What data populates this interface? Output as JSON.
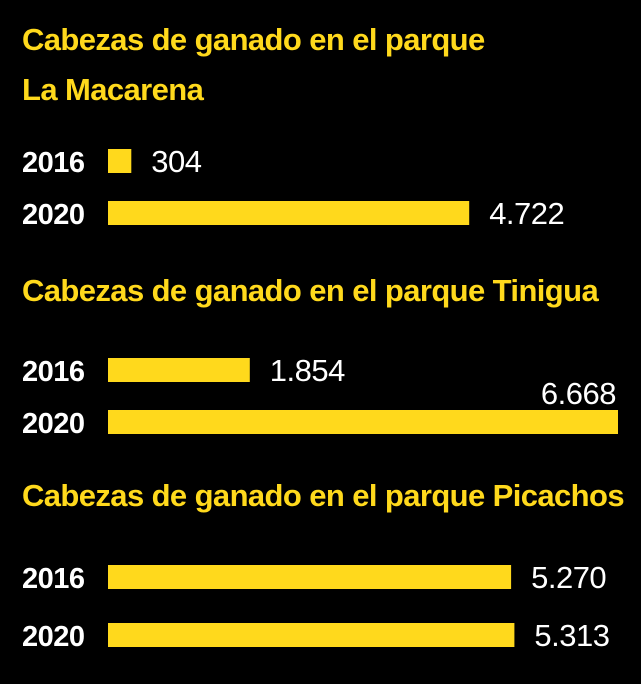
{
  "colors": {
    "background": "#000000",
    "accent": "#ffd91c",
    "text": "#ffffff"
  },
  "chart_data": [
    {
      "type": "bar",
      "orientation": "horizontal",
      "title_lines": [
        "Cabezas de ganado en el parque",
        "La Macarena"
      ],
      "categories": [
        "2016",
        "2020"
      ],
      "values": [
        304,
        4722
      ],
      "value_labels": [
        "304",
        "4.722"
      ]
    },
    {
      "type": "bar",
      "orientation": "horizontal",
      "title_lines": [
        "Cabezas de ganado en el parque Tinigua"
      ],
      "categories": [
        "2016",
        "2020"
      ],
      "values": [
        1854,
        6668
      ],
      "value_labels": [
        "1.854",
        "6.668"
      ]
    },
    {
      "type": "bar",
      "orientation": "horizontal",
      "title_lines": [
        "Cabezas de ganado en el parque Picachos"
      ],
      "categories": [
        "2016",
        "2020"
      ],
      "values": [
        5270,
        5313
      ],
      "value_labels": [
        "5.270",
        "5.313"
      ]
    }
  ]
}
